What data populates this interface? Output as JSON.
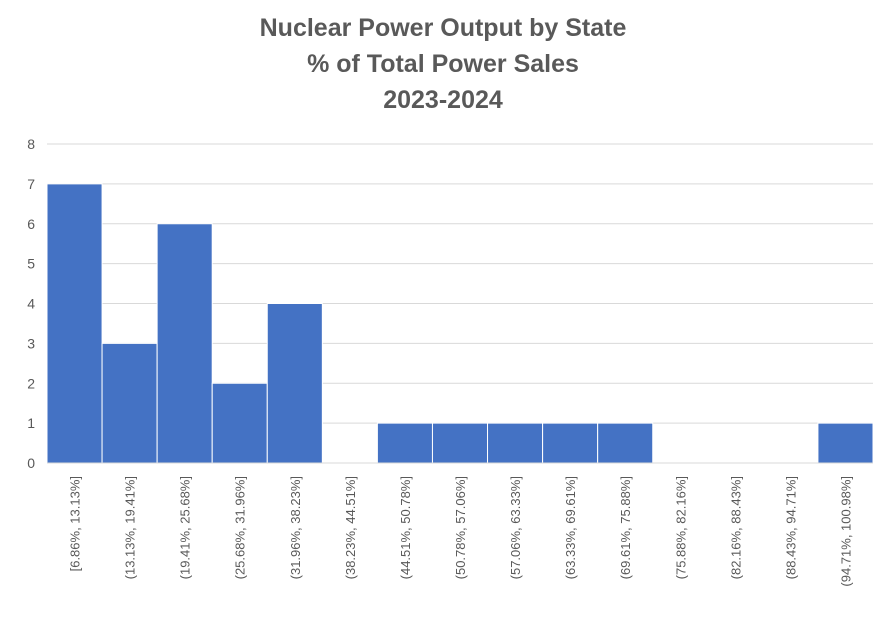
{
  "chart_data": {
    "type": "bar",
    "title_lines": [
      "Nuclear Power Output by State",
      "% of Total Power Sales",
      "2023-2024"
    ],
    "categories": [
      "[6.86%, 13.13%]",
      "(13.13%, 19.41%]",
      "(19.41%, 25.68%]",
      "(25.68%, 31.96%]",
      "(31.96%, 38.23%]",
      "(38.23%, 44.51%]",
      "(44.51%, 50.78%]",
      "(50.78%, 57.06%]",
      "(57.06%, 63.33%]",
      "(63.33%, 69.61%]",
      "(69.61%, 75.88%]",
      "(75.88%, 82.16%]",
      "(82.16%, 88.43%]",
      "(88.43%, 94.71%]",
      "(94.71%, 100.98%]"
    ],
    "values": [
      7,
      3,
      6,
      2,
      4,
      0,
      1,
      1,
      1,
      1,
      1,
      0,
      0,
      0,
      1
    ],
    "ylim": [
      0,
      8
    ],
    "yticks": [
      0,
      1,
      2,
      3,
      4,
      5,
      6,
      7,
      8
    ],
    "grid": true,
    "legend": false,
    "bar_color": "#4472C4",
    "grid_color": "#D9D9D9",
    "text_color": "#595959"
  }
}
